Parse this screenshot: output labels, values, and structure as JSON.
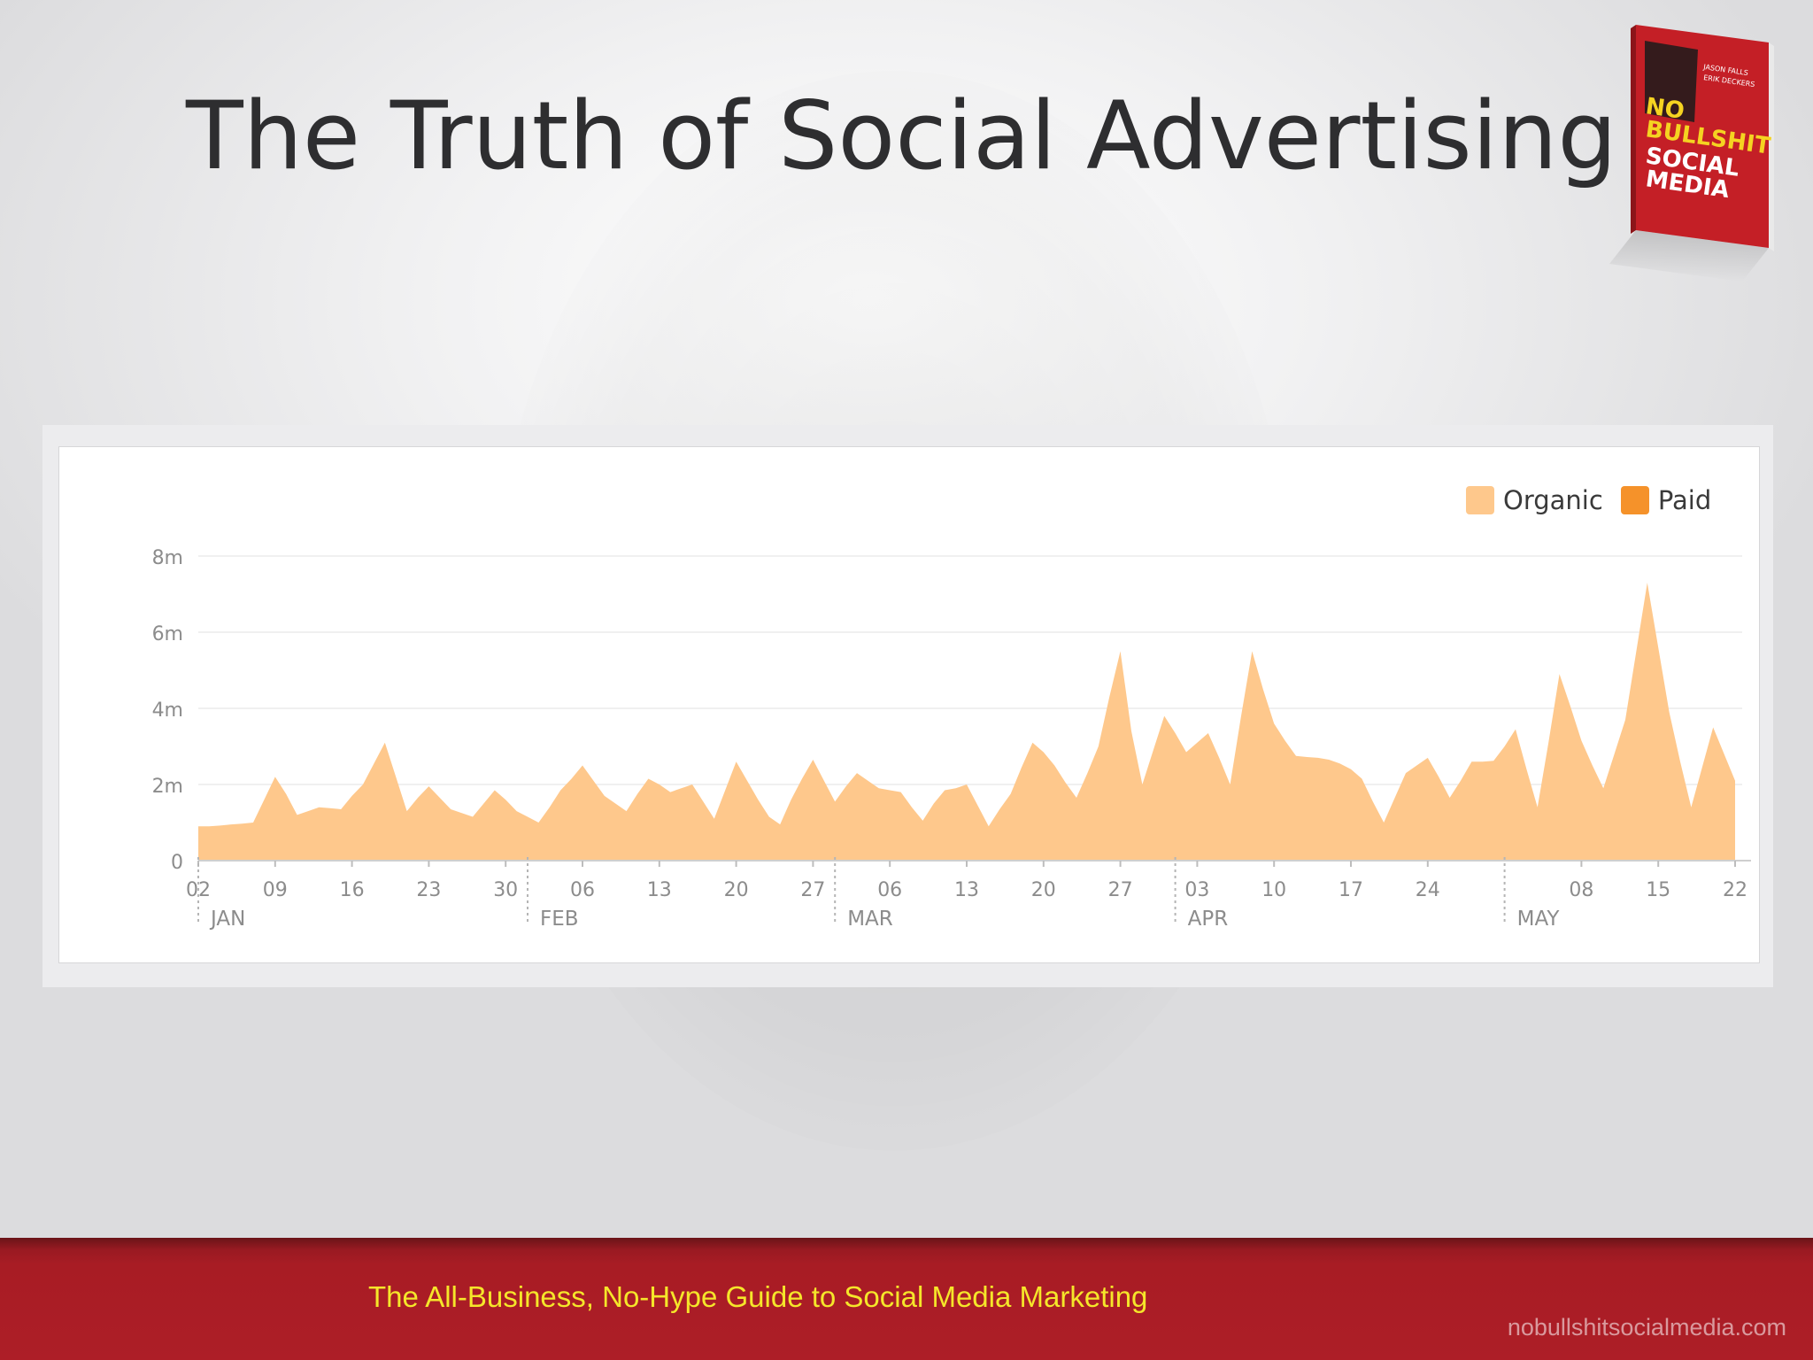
{
  "slide": {
    "title": "The Truth of Social Advertising",
    "footer_tagline": "The All-Business, No-Hype Guide to Social Media Marketing",
    "footer_url": "nobullshitsocialmedia.com"
  },
  "book": {
    "authors": [
      "JASON FALLS",
      "ERIK DECKERS"
    ],
    "title_lines": [
      "NO",
      "BULLSHIT",
      "SOCIAL",
      "MEDIA"
    ]
  },
  "colors": {
    "organic": "#fec88c",
    "paid": "#f5922a",
    "footer": "#ad1e27",
    "tagline": "#f5e62a"
  },
  "chart_data": {
    "type": "area",
    "title": "",
    "xlabel": "",
    "ylabel": "",
    "ylim": [
      0,
      8
    ],
    "y_ticks": [
      "0",
      "2m",
      "4m",
      "6m",
      "8m"
    ],
    "y_tick_values": [
      0,
      2,
      4,
      6,
      8
    ],
    "x_ticks": [
      "02",
      "09",
      "16",
      "23",
      "30",
      "06",
      "13",
      "20",
      "27",
      "06",
      "13",
      "20",
      "27",
      "03",
      "10",
      "17",
      "24",
      "08",
      "15",
      "22"
    ],
    "x_tick_days": [
      0,
      7,
      14,
      21,
      28,
      35,
      42,
      49,
      56,
      63,
      70,
      77,
      84,
      91,
      98,
      105,
      112,
      126,
      133,
      140
    ],
    "months": [
      {
        "label": "JAN",
        "day": 0
      },
      {
        "label": "FEB",
        "day": 30
      },
      {
        "label": "MAR",
        "day": 58
      },
      {
        "label": "APR",
        "day": 89
      },
      {
        "label": "MAY",
        "day": 119
      }
    ],
    "grid": true,
    "legend_position": "top-right",
    "series": [
      {
        "name": "Organic",
        "x": [
          0,
          1,
          2,
          3,
          4,
          5,
          6,
          7,
          8,
          9,
          10,
          11,
          12,
          13,
          14,
          15,
          16,
          17,
          18,
          19,
          20,
          21,
          22,
          23,
          24,
          25,
          26,
          27,
          28,
          29,
          30,
          31,
          32,
          33,
          34,
          35,
          36,
          37,
          38,
          39,
          40,
          41,
          42,
          43,
          44,
          45,
          46,
          47,
          48,
          49,
          50,
          51,
          52,
          53,
          54,
          55,
          56,
          57,
          58,
          59,
          60,
          61,
          62,
          63,
          64,
          65,
          66,
          67,
          68,
          69,
          70,
          71,
          72,
          73,
          74,
          75,
          76,
          77,
          78,
          79,
          80,
          81,
          82,
          83,
          84,
          85,
          86,
          87,
          88,
          89,
          90,
          91,
          92,
          93,
          94,
          95,
          96,
          97,
          98,
          99,
          100,
          101,
          102,
          103,
          104,
          105,
          106,
          107,
          108,
          109,
          110,
          111,
          112,
          113,
          114,
          115,
          116,
          117,
          118,
          119,
          120,
          121,
          122,
          123,
          124,
          125,
          126,
          127,
          128,
          129,
          130,
          131,
          132,
          133,
          134,
          135,
          136,
          137,
          138,
          139,
          140
        ],
        "values": [
          0.9,
          0.9,
          0.92,
          0.95,
          0.97,
          1.0,
          1.6,
          2.2,
          1.75,
          1.2,
          1.3,
          1.4,
          1.38,
          1.35,
          1.7,
          2.0,
          2.55,
          3.1,
          2.2,
          1.3,
          1.65,
          1.95,
          1.65,
          1.35,
          1.25,
          1.15,
          1.5,
          1.85,
          1.6,
          1.3,
          1.15,
          1.0,
          1.4,
          1.85,
          2.15,
          2.5,
          2.1,
          1.7,
          1.5,
          1.3,
          1.75,
          2.15,
          2.0,
          1.8,
          1.9,
          2.0,
          1.55,
          1.1,
          1.85,
          2.6,
          2.1,
          1.6,
          1.15,
          0.95,
          1.6,
          2.15,
          2.65,
          2.1,
          1.55,
          1.95,
          2.3,
          2.1,
          1.9,
          1.85,
          1.8,
          1.4,
          1.05,
          1.5,
          1.85,
          1.9,
          2.0,
          1.45,
          0.9,
          1.35,
          1.75,
          2.45,
          3.1,
          2.85,
          2.5,
          2.05,
          1.65,
          2.3,
          3.0,
          4.3,
          5.5,
          3.4,
          2.0,
          2.9,
          3.8,
          3.35,
          2.85,
          3.1,
          3.35,
          2.7,
          2.0,
          3.8,
          5.5,
          4.5,
          3.6,
          3.15,
          2.75,
          2.72,
          2.7,
          2.65,
          2.55,
          2.4,
          2.15,
          1.55,
          1.0,
          1.65,
          2.3,
          2.5,
          2.7,
          2.2,
          1.65,
          2.1,
          2.6,
          2.6,
          2.62,
          3.0,
          3.45,
          2.4,
          1.4,
          3.1,
          4.9,
          4.05,
          3.15,
          2.5,
          1.9,
          2.8,
          3.7,
          5.5,
          7.3,
          5.6,
          3.9,
          2.6,
          1.4,
          2.45,
          3.5,
          2.8,
          2.1
        ]
      },
      {
        "name": "Paid",
        "values": []
      }
    ]
  }
}
